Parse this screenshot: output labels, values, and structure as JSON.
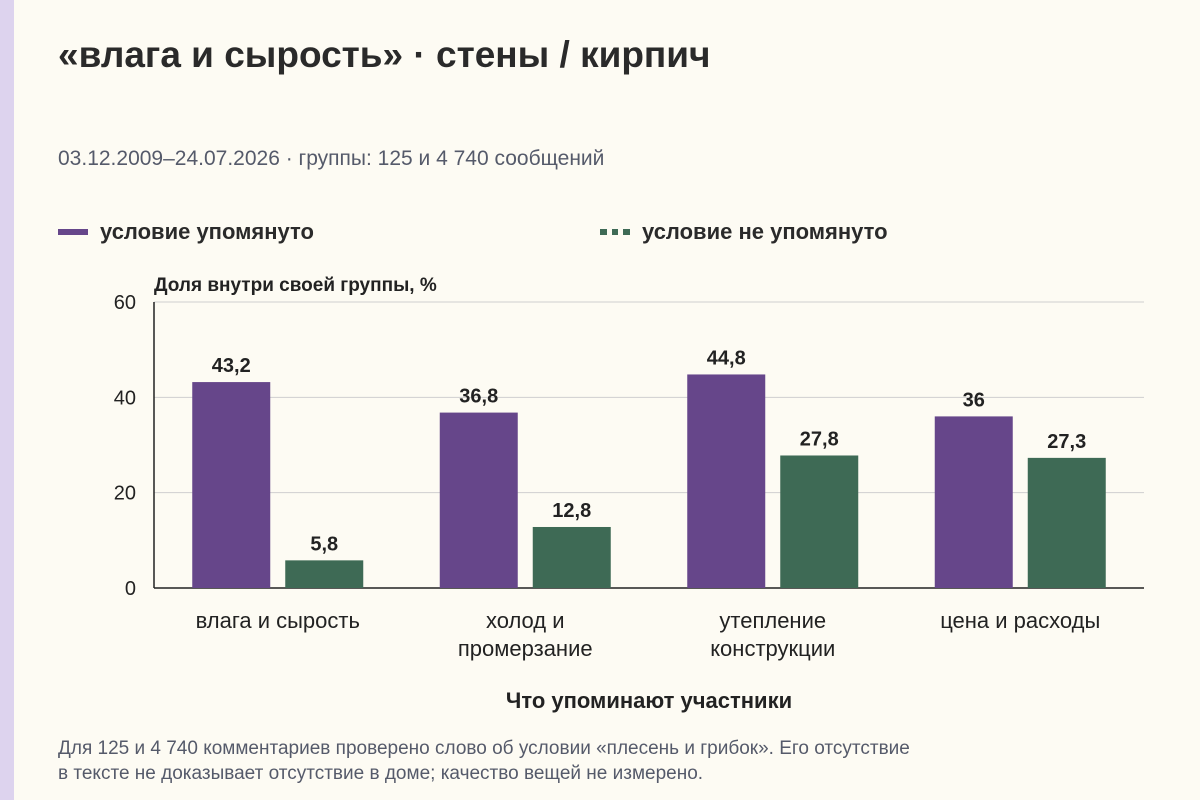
{
  "title": "«влага и сырость» · стены / кирпич",
  "subtitle": "03.12.2009–24.07.2026 · группы: 125 и 4 740 сообщений",
  "legend": [
    {
      "label": "условие упомянуто",
      "color": "#66468a",
      "style": "solid"
    },
    {
      "label": "условие не упомянуто",
      "color": "#3e6a55",
      "style": "dashed"
    }
  ],
  "footnote": [
    "Для 125 и 4 740 комментариев проверено слово об условии «плесень и грибок». Его отсутствие",
    "в тексте не доказывает отсутствие в доме; качество вещей не измерено."
  ],
  "chart_data": {
    "type": "bar",
    "ylabel": "Доля внутри своей группы, %",
    "xlabel": "Что упоминают участники",
    "ylim": [
      0,
      60
    ],
    "yticks": [
      "0",
      "20",
      "40",
      "60"
    ],
    "grid": true,
    "legend_position": "top",
    "categories": [
      [
        "влага и сырость"
      ],
      [
        "холод и",
        "промерзание"
      ],
      [
        "утепление",
        "конструкции"
      ],
      [
        "цена и расходы"
      ]
    ],
    "series": [
      {
        "name": "условие упомянуто",
        "color": "#66468a",
        "values": [
          43.2,
          36.8,
          44.8,
          36
        ],
        "labels": [
          "43,2",
          "36,8",
          "44,8",
          "36"
        ]
      },
      {
        "name": "условие не упомянуто",
        "color": "#3e6a55",
        "values": [
          5.8,
          12.8,
          27.8,
          27.3
        ],
        "labels": [
          "5,8",
          "12,8",
          "27,8",
          "27,3"
        ]
      }
    ]
  }
}
